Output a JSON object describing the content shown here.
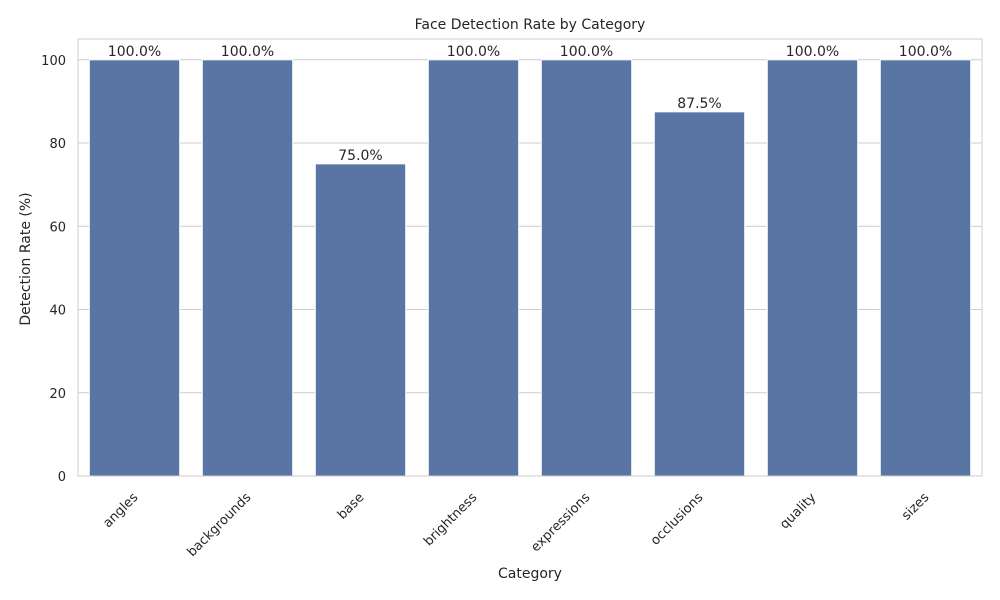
{
  "chart_data": {
    "type": "bar",
    "title": "Face Detection Rate by Category",
    "xlabel": "Category",
    "ylabel": "Detection Rate (%)",
    "categories": [
      "angles",
      "backgrounds",
      "base",
      "brightness",
      "expressions",
      "occlusions",
      "quality",
      "sizes"
    ],
    "values": [
      100.0,
      100.0,
      75.0,
      100.0,
      100.0,
      87.5,
      100.0,
      100.0
    ],
    "data_labels": [
      "100.0%",
      "100.0%",
      "75.0%",
      "100.0%",
      "100.0%",
      "87.5%",
      "100.0%",
      "100.0%"
    ],
    "ylim": [
      0,
      105
    ],
    "yticks": [
      0,
      20,
      40,
      60,
      80,
      100
    ],
    "ytick_labels": [
      "0",
      "20",
      "40",
      "60",
      "80",
      "100"
    ],
    "grid": "horizontal",
    "bar_color": "#5975a4",
    "grid_color": "#cccccc",
    "frame_color": "#cccccc"
  }
}
